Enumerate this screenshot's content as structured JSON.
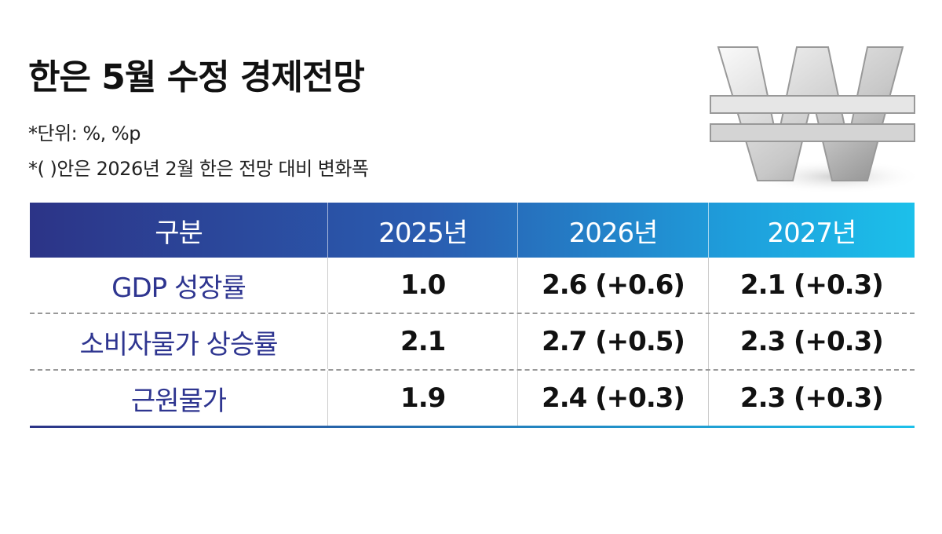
{
  "header": {
    "title": "한은 5월 수정 경제전망",
    "notes": [
      "*단위: %, %p",
      "*(   )안은 2026년 2월 한은 전망 대비 변화폭"
    ]
  },
  "table": {
    "columns": [
      "구분",
      "2025년",
      "2026년",
      "2027년"
    ],
    "rows": [
      [
        "GDP 성장률",
        "1.0",
        "2.6 (+0.6)",
        "2.1 (+0.3)"
      ],
      [
        "소비자물가 상승률",
        "2.1",
        "2.7 (+0.5)",
        "2.3 (+0.3)"
      ],
      [
        "근원물가",
        "1.9",
        "2.4 (+0.3)",
        "2.3 (+0.3)"
      ]
    ]
  }
}
